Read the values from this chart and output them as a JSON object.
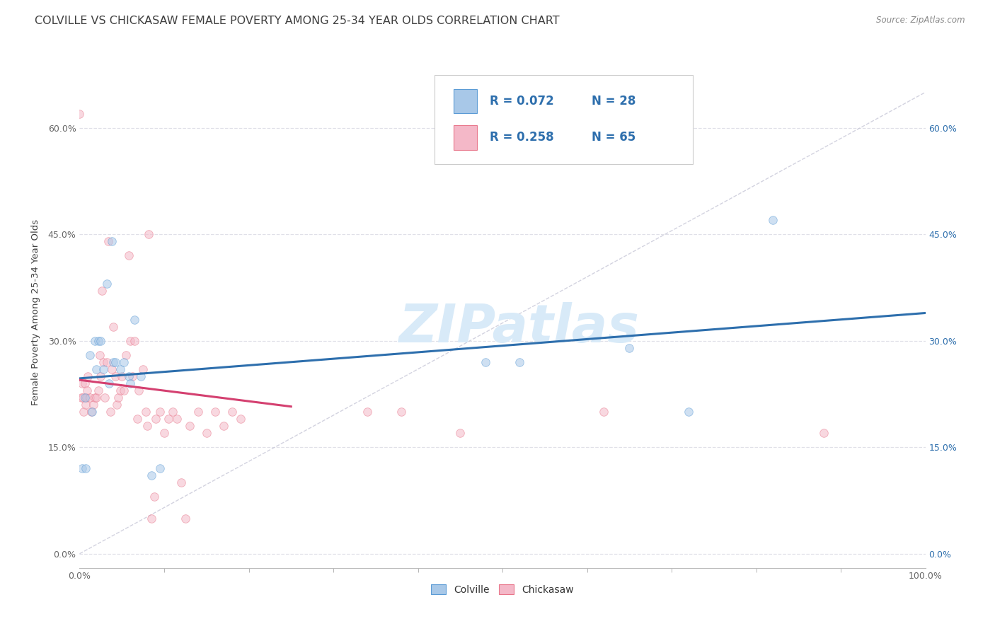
{
  "title": "COLVILLE VS CHICKASAW FEMALE POVERTY AMONG 25-34 YEAR OLDS CORRELATION CHART",
  "source": "Source: ZipAtlas.com",
  "ylabel": "Female Poverty Among 25-34 Year Olds",
  "xlim": [
    0.0,
    1.0
  ],
  "ylim": [
    -0.02,
    0.7
  ],
  "x_minor_ticks": [
    0.1,
    0.2,
    0.3,
    0.4,
    0.5,
    0.6,
    0.7,
    0.8,
    0.9
  ],
  "yticks": [
    0.0,
    0.15,
    0.3,
    0.45,
    0.6
  ],
  "yticklabels": [
    "0.0%",
    "15.0%",
    "30.0%",
    "45.0%",
    "60.0%"
  ],
  "colville_color": "#a8c8e8",
  "chickasaw_color": "#f4b8c8",
  "colville_edge": "#5b9bd5",
  "chickasaw_edge": "#e8758a",
  "regression_blue": "#2e6fad",
  "regression_pink": "#d44070",
  "diagonal_color": "#c8c8d8",
  "grid_color": "#e0e0e8",
  "R_colville": 0.072,
  "N_colville": 28,
  "R_chickasaw": 0.258,
  "N_chickasaw": 65,
  "colville_x": [
    0.003,
    0.006,
    0.007,
    0.012,
    0.015,
    0.018,
    0.02,
    0.022,
    0.025,
    0.028,
    0.032,
    0.035,
    0.038,
    0.04,
    0.042,
    0.048,
    0.052,
    0.058,
    0.06,
    0.065,
    0.072,
    0.085,
    0.095,
    0.48,
    0.52,
    0.65,
    0.72,
    0.82
  ],
  "colville_y": [
    0.12,
    0.22,
    0.12,
    0.28,
    0.2,
    0.3,
    0.26,
    0.3,
    0.3,
    0.26,
    0.38,
    0.24,
    0.44,
    0.27,
    0.27,
    0.26,
    0.27,
    0.25,
    0.24,
    0.33,
    0.25,
    0.11,
    0.12,
    0.27,
    0.27,
    0.29,
    0.2,
    0.47
  ],
  "chickasaw_x": [
    0.0,
    0.002,
    0.003,
    0.004,
    0.005,
    0.006,
    0.007,
    0.008,
    0.009,
    0.01,
    0.012,
    0.014,
    0.016,
    0.018,
    0.02,
    0.022,
    0.024,
    0.025,
    0.026,
    0.028,
    0.03,
    0.032,
    0.034,
    0.036,
    0.038,
    0.04,
    0.042,
    0.044,
    0.046,
    0.048,
    0.05,
    0.052,
    0.055,
    0.058,
    0.06,
    0.062,
    0.065,
    0.068,
    0.07,
    0.075,
    0.078,
    0.08,
    0.082,
    0.085,
    0.088,
    0.09,
    0.095,
    0.1,
    0.105,
    0.11,
    0.115,
    0.12,
    0.125,
    0.13,
    0.14,
    0.15,
    0.16,
    0.17,
    0.18,
    0.19,
    0.34,
    0.38,
    0.45,
    0.62,
    0.88
  ],
  "chickasaw_y": [
    0.62,
    0.22,
    0.24,
    0.22,
    0.2,
    0.24,
    0.21,
    0.22,
    0.23,
    0.25,
    0.22,
    0.2,
    0.21,
    0.22,
    0.22,
    0.23,
    0.28,
    0.25,
    0.37,
    0.27,
    0.22,
    0.27,
    0.44,
    0.2,
    0.26,
    0.32,
    0.25,
    0.21,
    0.22,
    0.23,
    0.25,
    0.23,
    0.28,
    0.42,
    0.3,
    0.25,
    0.3,
    0.19,
    0.23,
    0.26,
    0.2,
    0.18,
    0.45,
    0.05,
    0.08,
    0.19,
    0.2,
    0.17,
    0.19,
    0.2,
    0.19,
    0.1,
    0.05,
    0.18,
    0.2,
    0.17,
    0.2,
    0.18,
    0.2,
    0.19,
    0.2,
    0.2,
    0.17,
    0.2,
    0.17
  ],
  "watermark": "ZIPatlas",
  "watermark_color": "#d8eaf8",
  "background_color": "#ffffff",
  "title_color": "#404040",
  "axis_label_color": "#404040",
  "left_tick_color": "#666666",
  "right_tick_color": "#2e6fad",
  "marker_size": 70,
  "marker_alpha": 0.55,
  "title_fontsize": 11.5,
  "axis_label_fontsize": 9.5,
  "tick_fontsize": 9,
  "legend_fontsize": 12
}
